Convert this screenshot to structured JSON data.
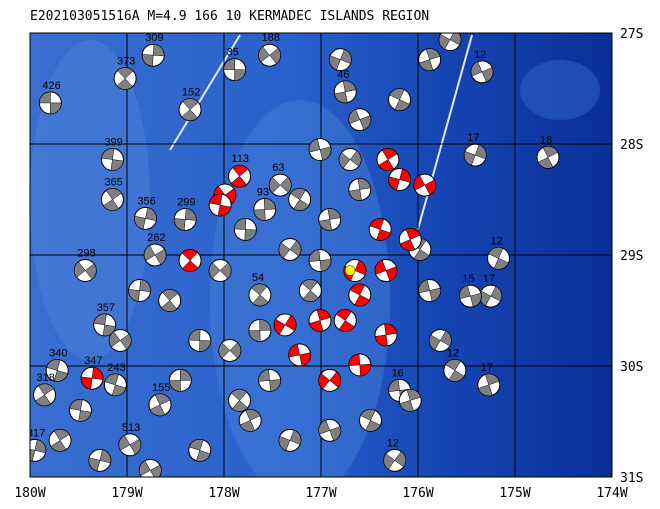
{
  "map": {
    "title": "E202103051516A  M=4.9  166  10  KERMADEC ISLANDS REGION",
    "xlim": [
      -180,
      -174
    ],
    "ylim": [
      -27,
      -31
    ],
    "xticks": [
      {
        "value": -180,
        "label": "180W"
      },
      {
        "value": -179,
        "label": "179W"
      },
      {
        "value": -178,
        "label": "178W"
      },
      {
        "value": -177,
        "label": "177W"
      },
      {
        "value": -176,
        "label": "176W"
      },
      {
        "value": -175,
        "label": "175W"
      },
      {
        "value": -174,
        "label": "174W"
      }
    ],
    "yticks": [
      {
        "value": -27,
        "label": "27S"
      },
      {
        "value": -28,
        "label": "28S"
      },
      {
        "value": -29,
        "label": "29S"
      },
      {
        "value": -30,
        "label": "30S"
      },
      {
        "value": -31,
        "label": "31S"
      }
    ],
    "grid": true,
    "event": {
      "lon": -176.7,
      "lat": -29.14,
      "color": "#ffff00"
    },
    "series": [
      {
        "color": "#808080",
        "events": [
          {
            "lon": -179.79,
            "lat": -27.63,
            "label": "426"
          },
          {
            "lon": -179.02,
            "lat": -27.41,
            "label": "373"
          },
          {
            "lon": -178.73,
            "lat": -27.2,
            "label": "309"
          },
          {
            "lon": -177.53,
            "lat": -27.2,
            "label": "188"
          },
          {
            "lon": -179.15,
            "lat": -28.14,
            "label": "399"
          },
          {
            "lon": -179.15,
            "lat": -28.5,
            "label": "365"
          },
          {
            "lon": -178.81,
            "lat": -28.67,
            "label": "356"
          },
          {
            "lon": -178.71,
            "lat": -29.0,
            "label": "262"
          },
          {
            "lon": -179.72,
            "lat": -30.04,
            "label": "340"
          },
          {
            "lon": -174.66,
            "lat": -28.12,
            "label": "18"
          },
          {
            "lon": -175.41,
            "lat": -28.1,
            "label": "17"
          },
          {
            "lon": -175.34,
            "lat": -27.35,
            "label": "12"
          },
          {
            "lon": -175.17,
            "lat": -29.03,
            "label": "12"
          },
          {
            "lon": -175.27,
            "lat": -30.17,
            "label": "17"
          },
          {
            "lon": -175.25,
            "lat": -29.37,
            "label": "17"
          },
          {
            "lon": -175.46,
            "lat": -29.37,
            "label": "15"
          },
          {
            "lon": -175.62,
            "lat": -30.04,
            "label": "12"
          },
          {
            "lon": -176.75,
            "lat": -27.53,
            "label": "46"
          },
          {
            "lon": -176.24,
            "lat": -30.85,
            "label": "12"
          },
          {
            "lon": -176.19,
            "lat": -30.22,
            "label": "16"
          },
          {
            "lon": -177.63,
            "lat": -29.36,
            "label": "54"
          },
          {
            "lon": -177.58,
            "lat": -28.59,
            "label": "93"
          },
          {
            "lon": -177.42,
            "lat": -28.37,
            "label": "63"
          },
          {
            "lon": -177.89,
            "lat": -27.33,
            "label": "35"
          },
          {
            "lon": -178.35,
            "lat": -27.69,
            "label": "152"
          },
          {
            "lon": -178.4,
            "lat": -28.68,
            "label": "299"
          },
          {
            "lon": -179.43,
            "lat": -29.14,
            "label": "298"
          },
          {
            "lon": -179.23,
            "lat": -29.63,
            "label": "357"
          },
          {
            "lon": -179.85,
            "lat": -30.26,
            "label": "318"
          },
          {
            "lon": -179.95,
            "lat": -30.76,
            "label": "317"
          },
          {
            "lon": -178.97,
            "lat": -30.71,
            "label": "513"
          },
          {
            "lon": -179.12,
            "lat": -30.17,
            "label": "243"
          },
          {
            "lon": -178.66,
            "lat": -30.35,
            "label": "155"
          },
          {
            "lon": -176.8,
            "lat": -27.24
          },
          {
            "lon": -176.6,
            "lat": -27.78
          },
          {
            "lon": -176.19,
            "lat": -27.6
          },
          {
            "lon": -175.88,
            "lat": -27.24
          },
          {
            "lon": -175.67,
            "lat": -27.06
          },
          {
            "lon": -177.01,
            "lat": -28.05
          },
          {
            "lon": -177.22,
            "lat": -28.5
          },
          {
            "lon": -176.91,
            "lat": -28.68
          },
          {
            "lon": -177.32,
            "lat": -28.95
          },
          {
            "lon": -177.01,
            "lat": -29.05
          },
          {
            "lon": -177.11,
            "lat": -29.32
          },
          {
            "lon": -177.63,
            "lat": -29.68
          },
          {
            "lon": -177.94,
            "lat": -29.86
          },
          {
            "lon": -178.25,
            "lat": -29.77
          },
          {
            "lon": -178.56,
            "lat": -29.41
          },
          {
            "lon": -178.87,
            "lat": -29.32
          },
          {
            "lon": -179.07,
            "lat": -29.77
          },
          {
            "lon": -179.48,
            "lat": -30.4
          },
          {
            "lon": -179.69,
            "lat": -30.67
          },
          {
            "lon": -179.28,
            "lat": -30.85
          },
          {
            "lon": -178.76,
            "lat": -30.94
          },
          {
            "lon": -178.25,
            "lat": -30.76
          },
          {
            "lon": -177.73,
            "lat": -30.49
          },
          {
            "lon": -177.32,
            "lat": -30.67
          },
          {
            "lon": -176.91,
            "lat": -30.58
          },
          {
            "lon": -176.49,
            "lat": -30.49
          },
          {
            "lon": -176.08,
            "lat": -30.31
          },
          {
            "lon": -175.77,
            "lat": -29.77
          },
          {
            "lon": -175.88,
            "lat": -29.32
          },
          {
            "lon": -175.98,
            "lat": -28.95
          },
          {
            "lon": -176.6,
            "lat": -28.41
          },
          {
            "lon": -176.7,
            "lat": -28.14
          },
          {
            "lon": -177.53,
            "lat": -30.13
          },
          {
            "lon": -177.84,
            "lat": -30.31
          },
          {
            "lon": -178.45,
            "lat": -30.13
          },
          {
            "lon": -178.04,
            "lat": -29.14
          },
          {
            "lon": -177.78,
            "lat": -28.77
          }
        ]
      },
      {
        "color": "#ff0000",
        "events": [
          {
            "lon": -177.84,
            "lat": -28.29,
            "label": "113"
          },
          {
            "lon": -179.36,
            "lat": -30.11,
            "label": "347"
          },
          {
            "lon": -177.99,
            "lat": -28.46
          },
          {
            "lon": -178.04,
            "lat": -28.55
          },
          {
            "lon": -176.31,
            "lat": -28.14
          },
          {
            "lon": -176.19,
            "lat": -28.32
          },
          {
            "lon": -175.93,
            "lat": -28.37
          },
          {
            "lon": -176.39,
            "lat": -28.77
          },
          {
            "lon": -176.08,
            "lat": -28.86
          },
          {
            "lon": -176.65,
            "lat": -29.14
          },
          {
            "lon": -176.33,
            "lat": -29.14
          },
          {
            "lon": -176.6,
            "lat": -29.36
          },
          {
            "lon": -177.01,
            "lat": -29.59
          },
          {
            "lon": -177.37,
            "lat": -29.63
          },
          {
            "lon": -177.22,
            "lat": -29.9
          },
          {
            "lon": -176.75,
            "lat": -29.59
          },
          {
            "lon": -176.33,
            "lat": -29.72
          },
          {
            "lon": -176.91,
            "lat": -30.13
          },
          {
            "lon": -176.6,
            "lat": -29.99
          },
          {
            "lon": -178.35,
            "lat": -29.05
          }
        ]
      }
    ]
  }
}
